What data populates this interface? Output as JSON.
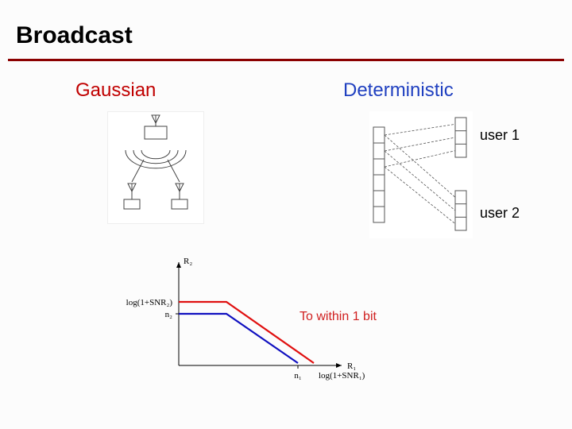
{
  "title": "Broadcast",
  "hr_color": "#8b0000",
  "gaussian": {
    "heading": "Gaussian",
    "heading_color": "#c00000",
    "stroke": "#444444",
    "fill": "#ffffff"
  },
  "deterministic": {
    "heading": "Deterministic",
    "heading_color": "#2040c0",
    "user1": "user 1",
    "user2": "user 2",
    "stroke": "#555555",
    "tx_h": 120,
    "rx1_h": 50,
    "rx2_h": 50,
    "levels_tx": 6,
    "levels_rx1": 3,
    "levels_rx2": 3
  },
  "capacity_chart": {
    "type": "line",
    "annotation": "To within 1 bit",
    "annotation_color": "#d02020",
    "axis_color": "#000000",
    "outer_color": "#e01010",
    "inner_color": "#1010c0",
    "outer_width": 2.2,
    "inner_width": 2.2,
    "labels": {
      "R1": "R₁",
      "R2": "R₂",
      "n1": "n₁",
      "n2": "n₂",
      "logsnr1": "log(1+SNR₁)",
      "logsnr2": "log(1+SNR₂)"
    },
    "label_fontsize": 11,
    "xlim": [
      0,
      200
    ],
    "ylim": [
      0,
      125
    ],
    "outer_points": [
      [
        0,
        45
      ],
      [
        60,
        45
      ],
      [
        170,
        122
      ]
    ],
    "inner_points": [
      [
        0,
        60
      ],
      [
        60,
        60
      ],
      [
        150,
        122
      ]
    ],
    "n2_y": 60,
    "logsnr2_y": 45,
    "n1_x": 150,
    "logsnr1_x": 170
  }
}
